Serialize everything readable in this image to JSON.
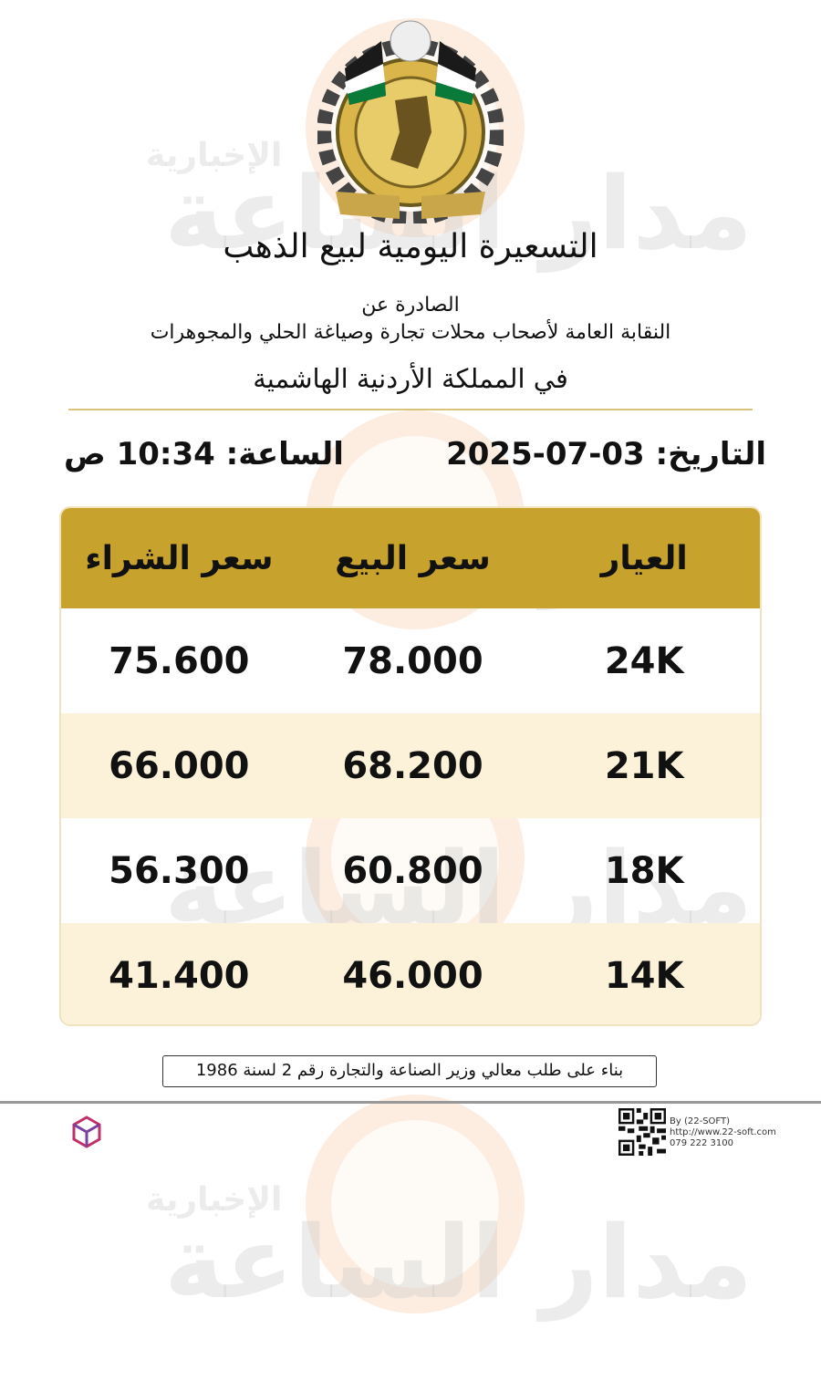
{
  "watermark": {
    "brand": "مدار الساعة",
    "sub": "الإخبارية"
  },
  "header": {
    "title": "التسعيرة اليومية لبيع الذهب",
    "issued_by": "الصادرة عن",
    "union": "النقابة العامة لأصحاب محلات تجارة وصياغة الحلي والمجوهرات",
    "country": "في المملكة الأردنية الهاشمية"
  },
  "date": {
    "label": "التاريخ:",
    "value": "03-07-2025"
  },
  "time": {
    "label": "الساعة:",
    "value": "10:34 ص"
  },
  "table": {
    "headers": [
      "العيار",
      "سعر البيع",
      "سعر الشراء"
    ],
    "rows": [
      {
        "karat": "24K",
        "sell": "78.000",
        "buy": "75.600"
      },
      {
        "karat": "21K",
        "sell": "68.200",
        "buy": "66.000"
      },
      {
        "karat": "18K",
        "sell": "60.800",
        "buy": "56.300"
      },
      {
        "karat": "14K",
        "sell": "46.000",
        "buy": "41.400"
      }
    ]
  },
  "note": "بناء على طلب معالي وزير الصناعة والتجارة رقم 2 لسنة 1986",
  "footer": {
    "by": "By (22-SOFT)",
    "url": "http://www.22-soft.com",
    "phone": "079 222 3100"
  },
  "colors": {
    "header_gold": "#c7a22c",
    "alt_row": "#fbf2d9"
  }
}
